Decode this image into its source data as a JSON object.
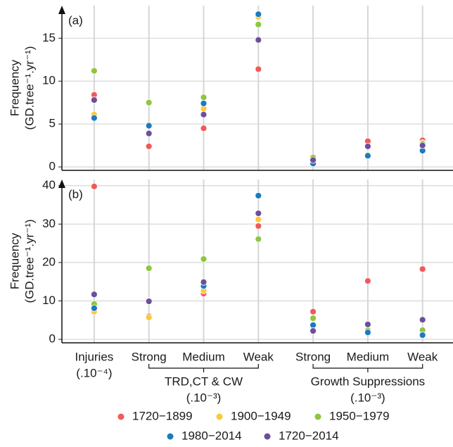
{
  "chart_data": [
    {
      "type": "scatter",
      "title": "(a)",
      "y_label": [
        "Frequency",
        "(GD.tree⁻¹.yr⁻¹)"
      ],
      "ylim": [
        -0.4,
        18.8
      ],
      "yticks": [
        0,
        5,
        10,
        15
      ],
      "grid": true,
      "series": [
        {
          "name": "1720−1899",
          "color": "#f05a5a",
          "values": [
            8.4,
            2.4,
            4.5,
            11.4,
            0.9,
            3.0,
            3.1
          ]
        },
        {
          "name": "1900−1949",
          "color": "#fdc93a",
          "values": [
            6.1,
            4.9,
            6.8,
            17.5,
            1.1,
            1.4,
            2.8
          ]
        },
        {
          "name": "1950−1979",
          "color": "#8ec63f",
          "values": [
            11.2,
            7.5,
            8.1,
            16.6,
            1.1,
            1.3,
            2.7
          ]
        },
        {
          "name": "1980−2014",
          "color": "#1a7bbf",
          "values": [
            5.7,
            4.8,
            7.4,
            17.8,
            0.4,
            1.3,
            1.9
          ]
        },
        {
          "name": "1720−2014",
          "color": "#6e4f9a",
          "values": [
            7.8,
            3.9,
            6.1,
            14.8,
            0.8,
            2.4,
            2.5
          ]
        }
      ]
    },
    {
      "type": "scatter",
      "title": "(b)",
      "y_label": [
        "Frequency",
        "(GD.tree⁻¹.yr⁻¹)"
      ],
      "ylim": [
        -0.9,
        41.6
      ],
      "yticks": [
        0,
        10,
        20,
        30,
        40
      ],
      "grid": true,
      "categories": [
        "Injuries",
        "Strong",
        "Medium",
        "Weak",
        "Strong",
        "Medium",
        "Weak"
      ],
      "category_notes": [
        "(.10⁻⁴)",
        null,
        null,
        null,
        null,
        null,
        null
      ],
      "x_groups": [
        {
          "label": "TRD,CT & CW",
          "note": "(.10⁻³)",
          "first": 1,
          "last": 3
        },
        {
          "label": "Growth Suppressions",
          "note": "(.10⁻³)",
          "first": 4,
          "last": 6
        }
      ],
      "series": [
        {
          "color": "#f05a5a",
          "values": [
            39.8,
            6.0,
            11.9,
            29.5,
            7.2,
            15.2,
            18.3
          ]
        },
        {
          "color": "#fdc93a",
          "values": [
            7.2,
            5.7,
            12.7,
            31.2,
            2.2,
            2.5,
            2.2
          ]
        },
        {
          "color": "#8ec63f",
          "values": [
            9.2,
            18.5,
            20.9,
            26.1,
            5.5,
            2.3,
            2.4
          ]
        },
        {
          "color": "#1a7bbf",
          "values": [
            8.1,
            10.0,
            13.9,
            37.4,
            3.7,
            1.8,
            1.1
          ]
        },
        {
          "color": "#6e4f9a",
          "values": [
            11.7,
            9.9,
            14.9,
            32.8,
            2.2,
            3.9,
            5.1
          ]
        }
      ]
    }
  ]
}
